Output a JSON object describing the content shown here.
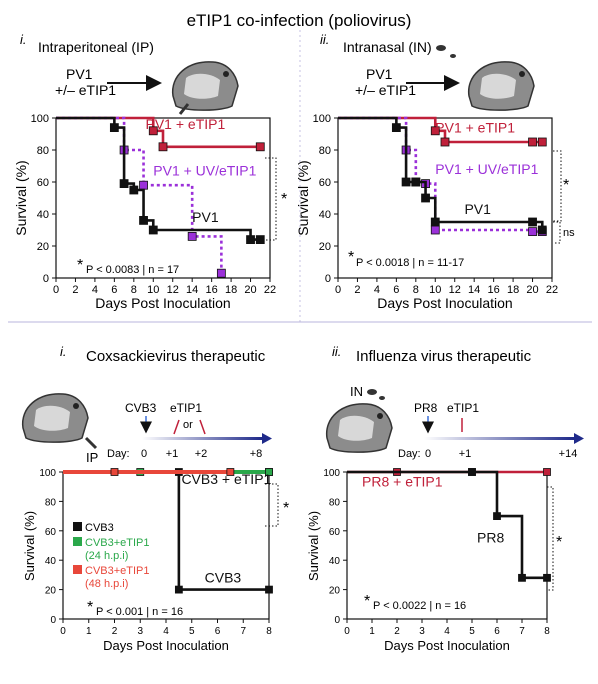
{
  "figure_title": "eTIP1 co-infection (poliovirus)",
  "colors": {
    "red": "#c0203a",
    "purple": "#9b30d9",
    "black": "#111111",
    "green": "#2aa84a",
    "orange_red": "#e8473a",
    "arrow_blue": "#3a6fd8",
    "divider": "#b9b4dc"
  },
  "panels": {
    "p1": {
      "label": "i.",
      "route": "Intraperitoneal (IP)",
      "inoc_line1": "PV1",
      "inoc_line2": "+/– eTIP1",
      "sig": "*",
      "ns": "",
      "stats_star": "*",
      "stats": "P < 0.0083 | n = 17"
    },
    "p2": {
      "label": "ii.",
      "route": "Intranasal (IN)",
      "inoc_line1": "PV1",
      "inoc_line2": "+/– eTIP1",
      "sig": "*",
      "ns": "ns",
      "stats_star": "*",
      "stats": "P < 0.0018 | n = 11-17"
    },
    "p3": {
      "label": "i.",
      "title": "Coxsackievirus therapeutic",
      "route": "IP",
      "virus": "CVB3",
      "treatment": "eTIP1",
      "or": "or",
      "day_label": "Day:",
      "days": [
        "0",
        "+1",
        "+2",
        "+8"
      ],
      "legend": [
        {
          "name": "CVB3",
          "sub": "",
          "color": "#111111"
        },
        {
          "name": "CVB3+eTIP1",
          "sub": "(24 h.p.i)",
          "color": "#2aa84a"
        },
        {
          "name": "CVB3+eTIP1",
          "sub": "(48 h.p.i)",
          "color": "#e8473a"
        }
      ],
      "sig": "*",
      "stats_star": "*",
      "stats": "P < 0.001 | n = 16"
    },
    "p4": {
      "label": "ii.",
      "title": "Influenza virus therapeutic",
      "route": "IN",
      "virus": "PR8",
      "treatment": "eTIP1",
      "day_label": "Day:",
      "days": [
        "0",
        "+1",
        "+14"
      ],
      "sig": "*",
      "stats_star": "*",
      "stats": "P < 0.0022 | n = 16"
    }
  },
  "chart_data": [
    {
      "id": "p1",
      "type": "line",
      "step": true,
      "xlabel": "Days Post Inoculation",
      "ylabel": "Survival (%)",
      "xlim": [
        0,
        22
      ],
      "ylim": [
        0,
        100
      ],
      "xticks": [
        0,
        2,
        4,
        6,
        8,
        10,
        12,
        14,
        16,
        18,
        20,
        22
      ],
      "yticks": [
        0,
        20,
        40,
        60,
        80,
        100
      ],
      "series": [
        {
          "name": "PV1 + eTIP1",
          "color": "#c0203a",
          "dash": false,
          "label_at": [
            9.2,
            93
          ],
          "x": [
            0,
            10,
            11,
            21
          ],
          "y": [
            100,
            92,
            82,
            82
          ]
        },
        {
          "name": "PV1 + UV/eTIP1",
          "color": "#9b30d9",
          "dash": true,
          "label_at": [
            10,
            64
          ],
          "x": [
            0,
            7,
            9,
            14,
            17
          ],
          "y": [
            100,
            80,
            58,
            26,
            3
          ]
        },
        {
          "name": "PV1",
          "color": "#111111",
          "dash": false,
          "label_at": [
            14,
            35
          ],
          "x": [
            0,
            6,
            7,
            8,
            9,
            10,
            20,
            21
          ],
          "y": [
            100,
            94,
            59,
            55,
            36,
            30,
            24,
            24
          ]
        }
      ]
    },
    {
      "id": "p2",
      "type": "line",
      "step": true,
      "xlabel": "Days Post Inoculation",
      "ylabel": "Survival (%)",
      "xlim": [
        0,
        22
      ],
      "ylim": [
        0,
        100
      ],
      "xticks": [
        0,
        2,
        4,
        6,
        8,
        10,
        12,
        14,
        16,
        18,
        20,
        22
      ],
      "yticks": [
        0,
        20,
        40,
        60,
        80,
        100
      ],
      "series": [
        {
          "name": "PV1 + eTIP1",
          "color": "#c0203a",
          "dash": false,
          "label_at": [
            10,
            91
          ],
          "x": [
            0,
            10,
            11,
            20,
            21
          ],
          "y": [
            100,
            92,
            85,
            85,
            85
          ]
        },
        {
          "name": "PV1 + UV/eTIP1",
          "color": "#9b30d9",
          "dash": true,
          "label_at": [
            10,
            65
          ],
          "x": [
            0,
            7,
            8,
            9,
            10,
            20,
            21
          ],
          "y": [
            100,
            80,
            60,
            59,
            30,
            29,
            29
          ]
        },
        {
          "name": "PV1",
          "color": "#111111",
          "dash": false,
          "label_at": [
            13,
            40
          ],
          "x": [
            0,
            6,
            7,
            8,
            9,
            10,
            20,
            21
          ],
          "y": [
            100,
            94,
            60,
            60,
            50,
            35,
            35,
            30
          ]
        }
      ]
    },
    {
      "id": "p3",
      "type": "line",
      "step": true,
      "xlabel": "Days Post Inoculation",
      "ylabel": "Survival (%)",
      "xlim": [
        0,
        8
      ],
      "ylim": [
        0,
        100
      ],
      "xticks": [
        0,
        1,
        2,
        3,
        4,
        5,
        6,
        7,
        8
      ],
      "yticks": [
        0,
        20,
        40,
        60,
        80,
        100
      ],
      "series": [
        {
          "name": "CVB3 + eTIP1",
          "color": "#111111",
          "dash": false,
          "label_at": [
            4.6,
            92
          ],
          "x": [
            0,
            4.5,
            8
          ],
          "y": [
            100,
            100,
            100
          ]
        },
        {
          "name": "CVB3",
          "color": "#111111",
          "dash": false,
          "label_at": [
            5.5,
            25
          ],
          "x": [
            0,
            4.5,
            8
          ],
          "y": [
            100,
            20,
            20
          ]
        },
        {
          "name": "",
          "color": "#2aa84a",
          "dash": false,
          "thick": true,
          "x": [
            0,
            3,
            8
          ],
          "y": [
            100,
            100,
            100
          ]
        },
        {
          "name": "",
          "color": "#e8473a",
          "dash": false,
          "thick": true,
          "dot": true,
          "x": [
            0,
            2,
            6.5
          ],
          "y": [
            100,
            100,
            100
          ]
        }
      ]
    },
    {
      "id": "p4",
      "type": "line",
      "step": true,
      "xlabel": "Days Post Inoculation",
      "ylabel": "Survival (%)",
      "xlim": [
        0,
        8
      ],
      "ylim": [
        0,
        100
      ],
      "xticks": [
        0,
        1,
        2,
        3,
        4,
        5,
        6,
        7,
        8
      ],
      "yticks": [
        0,
        20,
        40,
        60,
        80,
        100
      ],
      "series": [
        {
          "name": "PR8 + eTIP1",
          "color": "#c0203a",
          "dash": false,
          "label_at": [
            0.6,
            90
          ],
          "x": [
            0,
            2,
            5,
            8
          ],
          "y": [
            100,
            100,
            100,
            100
          ]
        },
        {
          "name": "PR8",
          "color": "#111111",
          "dash": false,
          "label_at": [
            5.2,
            52
          ],
          "x": [
            0,
            5,
            6,
            7,
            8
          ],
          "y": [
            100,
            100,
            70,
            28,
            28
          ]
        }
      ]
    }
  ]
}
